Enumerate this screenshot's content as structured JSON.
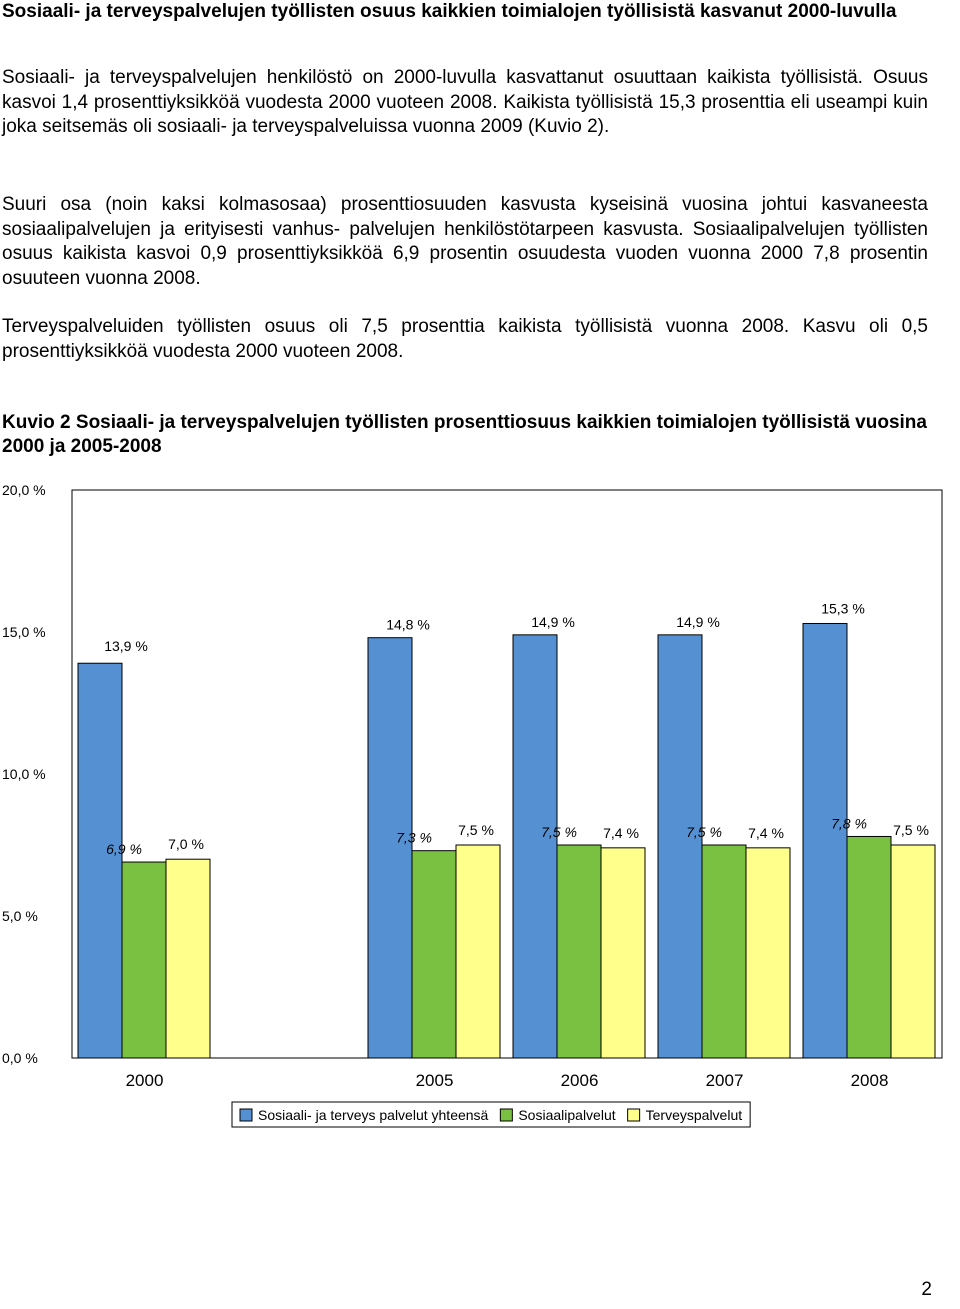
{
  "heading": "Sosiaali- ja terveyspalvelujen työllisten osuus kaikkien toimialojen työllisistä kasvanut 2000-luvulla",
  "paragraphs": [
    "Sosiaali- ja terveyspalvelujen henkilöstö on 2000-luvulla kasvattanut osuuttaan kaikista työllisistä. Osuus kasvoi 1,4 prosenttiyksikköä vuodesta 2000 vuoteen 2008. Kaikista työllisistä 15,3 prosenttia eli useampi kuin joka seitsemäs oli sosiaali- ja terveyspalveluissa vuonna 2009 (Kuvio 2).",
    "Suuri osa (noin kaksi kolmasosaa) prosenttiosuuden kasvusta kyseisinä vuosina johtui kasvaneesta sosiaalipalvelujen ja erityisesti vanhus- palvelujen henkilöstötarpeen kasvusta. Sosiaalipalvelujen työllisten osuus kaikista kasvoi 0,9 prosenttiyksikköä 6,9 prosentin osuudesta vuoden vuonna 2000 7,8 prosentin osuuteen vuonna 2008.",
    "Terveyspalveluiden työllisten osuus oli 7,5 prosenttia kaikista työllisistä vuonna 2008. Kasvu oli 0,5 prosenttiyksikköä vuodesta 2000 vuoteen 2008."
  ],
  "caption": "Kuvio 2 Sosiaali- ja terveyspalvelujen työllisten prosenttiosuus kaikkien toimialojen työllisistä vuosina 2000 ja 2005-2008",
  "page_number": "2",
  "chart_data": {
    "type": "bar",
    "categories": [
      "2000",
      "",
      "2005",
      "2006",
      "2007",
      "2008"
    ],
    "series": [
      {
        "name": "Sosiaali- ja terveys palvelut yhteensä",
        "color": "#5591d2",
        "values": [
          13.9,
          null,
          14.8,
          14.9,
          14.9,
          15.3
        ],
        "labels": [
          "13,9 %",
          "",
          "14,8 %",
          "14,9 %",
          "14,9 %",
          "15,3 %"
        ],
        "label_italic": false
      },
      {
        "name": "Sosiaalipalvelut",
        "color": "#7ac142",
        "values": [
          6.9,
          null,
          7.3,
          7.5,
          7.5,
          7.8
        ],
        "labels": [
          "6,9 %",
          "",
          "7,3 %",
          "7,5 %",
          "7,5 %",
          "7,8 %"
        ],
        "label_italic": true
      },
      {
        "name": "Terveyspalvelut",
        "color": "#ffff8c",
        "values": [
          7.0,
          null,
          7.5,
          7.4,
          7.4,
          7.5
        ],
        "labels": [
          "7,0 %",
          "",
          "7,5 %",
          "7,4 %",
          "7,4 %",
          "7,5 %"
        ],
        "label_italic": false
      }
    ],
    "y_ticks": [
      "0,0 %",
      "5,0 %",
      "10,0 %",
      "15,0 %",
      "20,0 %"
    ],
    "ylim": [
      0,
      20
    ],
    "grid": false,
    "legend_position": "bottom"
  }
}
